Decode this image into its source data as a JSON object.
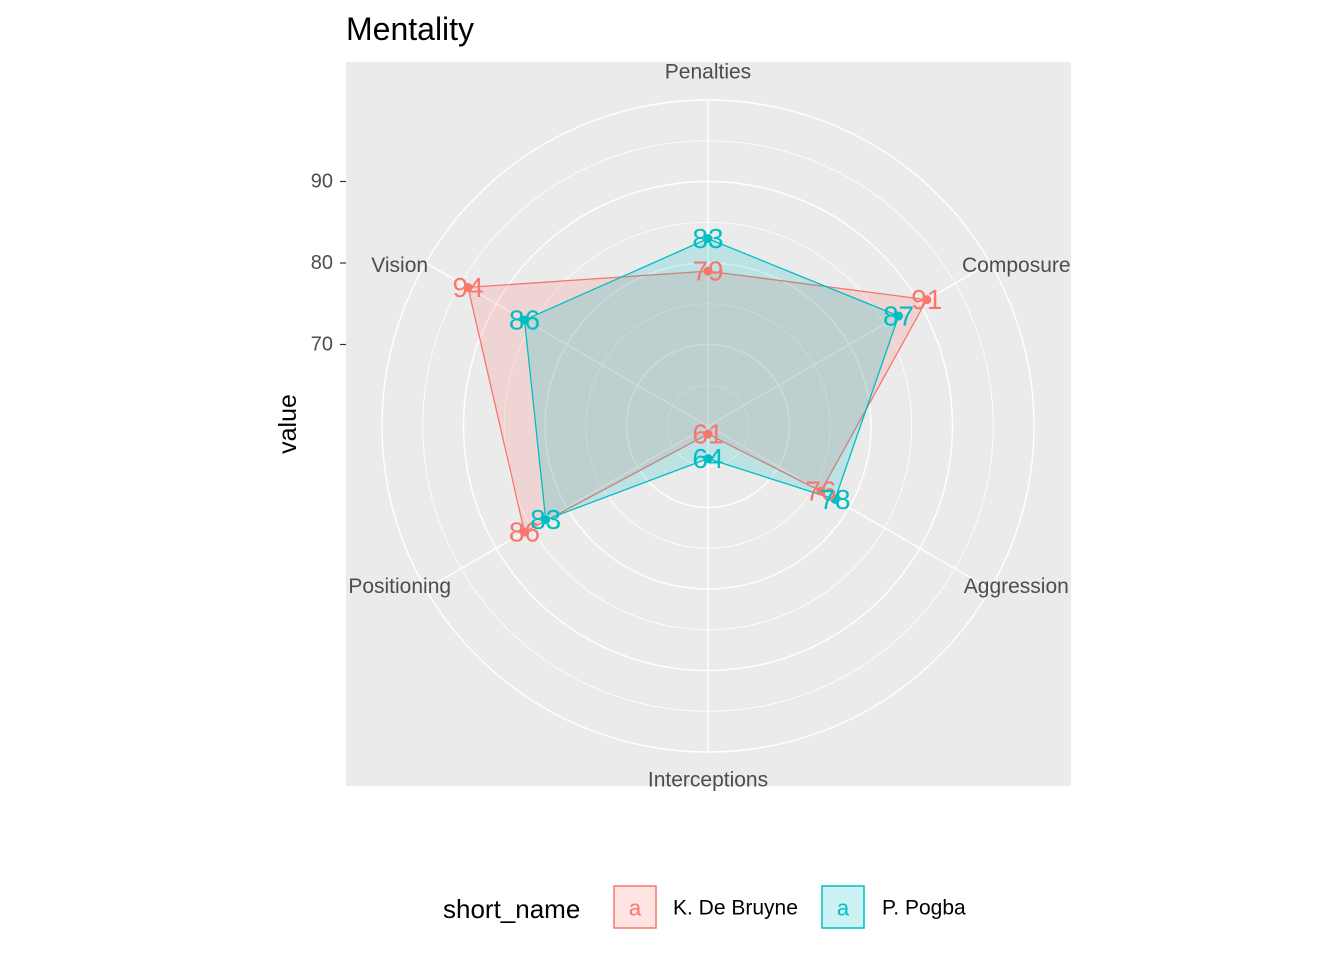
{
  "chart_data": {
    "type": "radar",
    "title": "Mentality",
    "ylabel": "value",
    "yticks": [
      70,
      80,
      90
    ],
    "ylim": [
      60,
      100
    ],
    "categories": [
      "Penalties",
      "Composure",
      "Aggression",
      "Interceptions",
      "Positioning",
      "Vision"
    ],
    "grid": true,
    "legend": {
      "title": "short_name",
      "position": "bottom",
      "key_glyph": "a"
    },
    "series": [
      {
        "name": "K. De Bruyne",
        "values": [
          79,
          91,
          76,
          61,
          86,
          94
        ],
        "color": "#F8766D"
      },
      {
        "name": "P. Pogba",
        "values": [
          83,
          87,
          78,
          64,
          83,
          86
        ],
        "color": "#00BFC4"
      }
    ]
  },
  "colors": {
    "panel_background": "#EBEBEB",
    "grid": "#FFFFFF",
    "axis_text": "#4D4D4D"
  }
}
